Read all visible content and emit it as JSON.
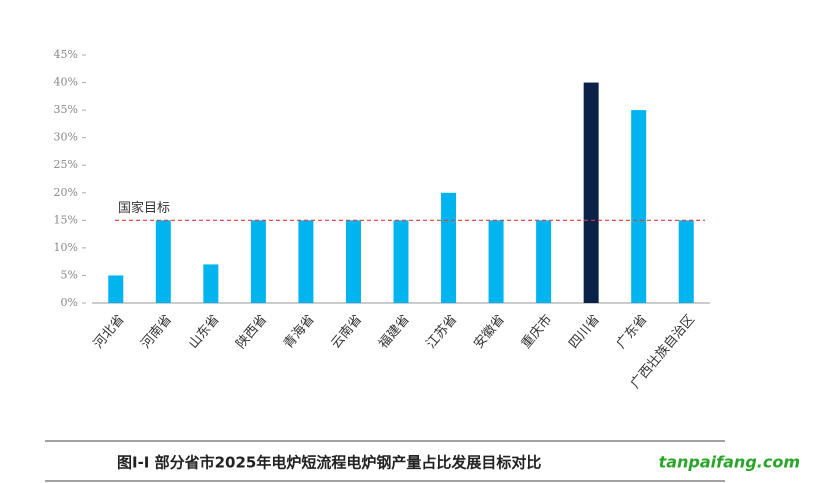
{
  "chart_data": {
    "type": "bar",
    "title": "图I-I 部分省市2025年电炉短流程电炉钢产量占比发展目标对比",
    "watermark": "tanpaifang.com",
    "categories": [
      "河北省",
      "河南省",
      "山东省",
      "陕西省",
      "青海省",
      "云南省",
      "福建省",
      "江苏省",
      "安徽省",
      "重庆市",
      "四川省",
      "广东省",
      "广西壮族自治区"
    ],
    "values": [
      5,
      15,
      7,
      15,
      15,
      15,
      15,
      20,
      15,
      15,
      40,
      35,
      15
    ],
    "colors": [
      "#00b4f0",
      "#00b4f0",
      "#00b4f0",
      "#00b4f0",
      "#00b4f0",
      "#00b4f0",
      "#00b4f0",
      "#00b4f0",
      "#00b4f0",
      "#00b4f0",
      "#0a2148",
      "#00b4f0",
      "#00b4f0"
    ],
    "reference": {
      "value": 15,
      "label": "国家目标",
      "color": "#e8383d"
    },
    "ylim": [
      0,
      45
    ],
    "yticks": [
      {
        "value": 0,
        "label": "0%"
      },
      {
        "value": 5,
        "label": "5%"
      },
      {
        "value": 10,
        "label": "10%"
      },
      {
        "value": 15,
        "label": "15%"
      },
      {
        "value": 20,
        "label": "20%"
      },
      {
        "value": 25,
        "label": "25%"
      },
      {
        "value": 30,
        "label": "30%"
      },
      {
        "value": 35,
        "label": "35%"
      },
      {
        "value": 40,
        "label": "40%"
      },
      {
        "value": 45,
        "label": "45%"
      }
    ]
  }
}
